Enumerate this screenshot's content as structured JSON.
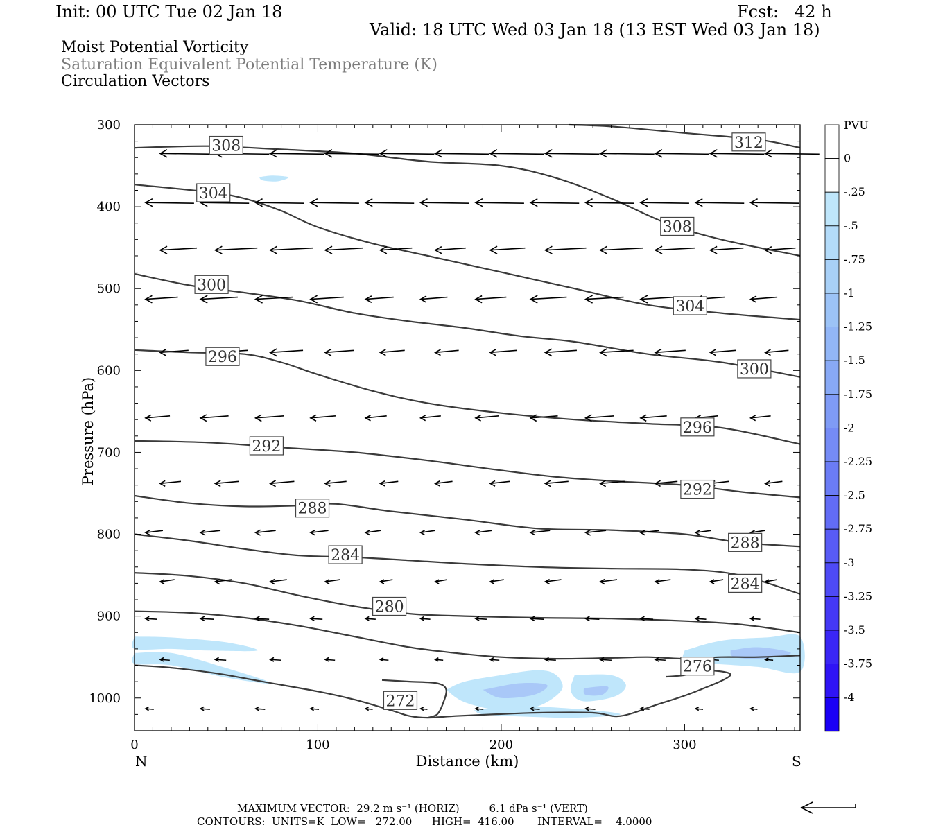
{
  "header": {
    "init": "Init: 00 UTC Tue 02 Jan 18",
    "fcst": "Fcst:   42 h",
    "valid": "Valid: 18 UTC Wed 03 Jan 18 (13 EST Wed 03 Jan 18)"
  },
  "titles": {
    "line1": "Moist Potential Vorticity",
    "line2": "Saturation Equivalent Potential Temperature (K)",
    "line3": "Circulation Vectors"
  },
  "chart_data": {
    "type": "cross-section",
    "xlabel": "Distance (km)",
    "ylabel": "Pressure (hPa)",
    "xlim": [
      0,
      363
    ],
    "ylim": [
      1040,
      300
    ],
    "y_scale": "linear, inverted (pressure decreasing upward)",
    "x_ticks": [
      0,
      100,
      200,
      300
    ],
    "y_ticks": [
      300,
      400,
      500,
      600,
      700,
      800,
      900,
      1000
    ],
    "x_end_labels": {
      "left": "N",
      "right": "S"
    },
    "colorbar": {
      "unit": "PVU",
      "labels": [
        "0",
        "-.25",
        "-.5",
        "-.75",
        "-1",
        "-1.25",
        "-1.5",
        "-1.75",
        "-2",
        "-2.25",
        "-2.5",
        "-2.75",
        "-3",
        "-3.25",
        "-3.5",
        "-3.75",
        "-4"
      ],
      "colors": [
        "#ffffff",
        "#ffffff",
        "#bfe6fb",
        "#b3dbf9",
        "#a8d0f7",
        "#9cc3f7",
        "#92b6f7",
        "#88a9f6",
        "#7f9bf6",
        "#758bf6",
        "#6b7cf6",
        "#626cf6",
        "#585bf6",
        "#4e4af6",
        "#4438f6",
        "#3a26f6",
        "#2f14f6",
        "#1a00f6"
      ]
    },
    "theta_e_contours": [
      {
        "label": "272",
        "points": [
          [
            0,
            960
          ],
          [
            20,
            963
          ],
          [
            45,
            970
          ],
          [
            70,
            980
          ],
          [
            100,
            992
          ],
          [
            120,
            1002
          ],
          [
            140,
            1015
          ],
          [
            150,
            1022
          ],
          [
            160,
            1024
          ],
          [
            175,
            1022
          ],
          [
            195,
            1020
          ],
          [
            220,
            1018
          ],
          [
            250,
            1018
          ],
          [
            265,
            1022
          ],
          [
            285,
            1008
          ],
          [
            305,
            993
          ],
          [
            325,
            972
          ],
          [
            310,
            966
          ],
          [
            300,
            972
          ],
          [
            290,
            974
          ]
        ]
      },
      {
        "label": "272",
        "points": [
          [
            135,
            978
          ],
          [
            150,
            980
          ],
          [
            165,
            982
          ],
          [
            170,
            990
          ],
          [
            168,
            1008
          ],
          [
            165,
            1020
          ],
          [
            160,
            1024
          ]
        ]
      },
      {
        "label": "276",
        "points": [
          [
            0,
            894
          ],
          [
            30,
            896
          ],
          [
            60,
            902
          ],
          [
            90,
            912
          ],
          [
            120,
            925
          ],
          [
            150,
            938
          ],
          [
            175,
            945
          ],
          [
            200,
            950
          ],
          [
            230,
            952
          ],
          [
            260,
            951
          ],
          [
            280,
            950
          ],
          [
            300,
            952
          ],
          [
            320,
            950
          ],
          [
            340,
            950
          ],
          [
            363,
            948
          ]
        ]
      },
      {
        "label": "280",
        "points": [
          [
            0,
            847
          ],
          [
            30,
            851
          ],
          [
            60,
            860
          ],
          [
            90,
            875
          ],
          [
            120,
            888
          ],
          [
            150,
            897
          ],
          [
            180,
            900
          ],
          [
            220,
            902
          ],
          [
            260,
            903
          ],
          [
            300,
            906
          ],
          [
            330,
            910
          ],
          [
            363,
            920
          ]
        ]
      },
      {
        "label": "284",
        "points": [
          [
            0,
            800
          ],
          [
            30,
            808
          ],
          [
            60,
            818
          ],
          [
            90,
            826
          ],
          [
            120,
            828
          ],
          [
            150,
            832
          ],
          [
            180,
            836
          ],
          [
            220,
            840
          ],
          [
            260,
            842
          ],
          [
            300,
            843
          ],
          [
            330,
            850
          ],
          [
            363,
            873
          ]
        ]
      },
      {
        "label": "288",
        "points": [
          [
            0,
            753
          ],
          [
            30,
            762
          ],
          [
            60,
            766
          ],
          [
            90,
            765
          ],
          [
            110,
            763
          ],
          [
            140,
            772
          ],
          [
            180,
            782
          ],
          [
            220,
            793
          ],
          [
            260,
            795
          ],
          [
            300,
            800
          ],
          [
            330,
            810
          ],
          [
            363,
            815
          ]
        ]
      },
      {
        "label": "292",
        "points": [
          [
            0,
            686
          ],
          [
            40,
            688
          ],
          [
            80,
            694
          ],
          [
            120,
            700
          ],
          [
            160,
            710
          ],
          [
            200,
            722
          ],
          [
            230,
            730
          ],
          [
            260,
            735
          ],
          [
            300,
            740
          ],
          [
            330,
            748
          ],
          [
            363,
            755
          ]
        ]
      },
      {
        "label": "296",
        "points": [
          [
            0,
            575
          ],
          [
            30,
            578
          ],
          [
            60,
            580
          ],
          [
            80,
            590
          ],
          [
            100,
            605
          ],
          [
            130,
            625
          ],
          [
            160,
            640
          ],
          [
            200,
            652
          ],
          [
            240,
            660
          ],
          [
            280,
            665
          ],
          [
            320,
            670
          ],
          [
            363,
            690
          ]
        ]
      },
      {
        "label": "300",
        "points": [
          [
            0,
            482
          ],
          [
            30,
            496
          ],
          [
            60,
            505
          ],
          [
            90,
            515
          ],
          [
            120,
            530
          ],
          [
            150,
            540
          ],
          [
            180,
            548
          ],
          [
            210,
            558
          ],
          [
            240,
            565
          ],
          [
            280,
            580
          ],
          [
            320,
            590
          ],
          [
            363,
            608
          ]
        ]
      },
      {
        "label": "304",
        "points": [
          [
            0,
            373
          ],
          [
            40,
            382
          ],
          [
            60,
            390
          ],
          [
            80,
            405
          ],
          [
            100,
            425
          ],
          [
            130,
            445
          ],
          [
            160,
            460
          ],
          [
            200,
            480
          ],
          [
            240,
            500
          ],
          [
            280,
            520
          ],
          [
            320,
            530
          ],
          [
            363,
            538
          ]
        ]
      },
      {
        "label": "308",
        "points": [
          [
            0,
            328
          ],
          [
            40,
            326
          ],
          [
            80,
            330
          ],
          [
            120,
            335
          ],
          [
            160,
            345
          ],
          [
            200,
            350
          ],
          [
            230,
            365
          ],
          [
            260,
            390
          ],
          [
            290,
            420
          ],
          [
            320,
            440
          ],
          [
            363,
            460
          ]
        ]
      },
      {
        "label": "312",
        "points": [
          [
            237,
            300
          ],
          [
            260,
            302
          ],
          [
            300,
            310
          ],
          [
            340,
            318
          ],
          [
            363,
            328
          ]
        ]
      }
    ],
    "contour_label_positions": [
      {
        "label": "308",
        "x": 50,
        "p": 325
      },
      {
        "label": "312",
        "x": 335,
        "p": 321
      },
      {
        "label": "304",
        "x": 43,
        "p": 383
      },
      {
        "label": "308",
        "x": 296,
        "p": 424
      },
      {
        "label": "300",
        "x": 42,
        "p": 495
      },
      {
        "label": "304",
        "x": 303,
        "p": 521
      },
      {
        "label": "296",
        "x": 48,
        "p": 583
      },
      {
        "label": "300",
        "x": 338,
        "p": 598
      },
      {
        "label": "292",
        "x": 72,
        "p": 692
      },
      {
        "label": "296",
        "x": 307,
        "p": 669
      },
      {
        "label": "292",
        "x": 307,
        "p": 745
      },
      {
        "label": "288",
        "x": 97,
        "p": 768
      },
      {
        "label": "288",
        "x": 333,
        "p": 810
      },
      {
        "label": "284",
        "x": 115,
        "p": 825
      },
      {
        "label": "284",
        "x": 333,
        "p": 860
      },
      {
        "label": "280",
        "x": 139,
        "p": 888
      },
      {
        "label": "276",
        "x": 307,
        "p": 961
      },
      {
        "label": "272",
        "x": 145,
        "p": 1003
      }
    ],
    "pv_shading_regions": [
      {
        "value": -0.25,
        "points": [
          [
            0,
            925
          ],
          [
            20,
            926
          ],
          [
            50,
            932
          ],
          [
            67,
            942
          ],
          [
            40,
            942
          ],
          [
            20,
            940
          ],
          [
            0,
            940
          ]
        ]
      },
      {
        "value": -0.25,
        "points": [
          [
            0,
            945
          ],
          [
            20,
            945
          ],
          [
            45,
            960
          ],
          [
            75,
            982
          ],
          [
            50,
            975
          ],
          [
            20,
            960
          ],
          [
            0,
            958
          ]
        ]
      },
      {
        "value": -0.25,
        "points": [
          [
            68,
            364
          ],
          [
            75,
            362
          ],
          [
            84,
            364
          ],
          [
            78,
            369
          ],
          [
            70,
            368
          ]
        ]
      },
      {
        "value": -0.25,
        "points": [
          [
            170,
            990
          ],
          [
            180,
            980
          ],
          [
            200,
            972
          ],
          [
            220,
            966
          ],
          [
            230,
            972
          ],
          [
            233,
            990
          ],
          [
            220,
            1010
          ],
          [
            200,
            1015
          ],
          [
            180,
            1005
          ]
        ]
      },
      {
        "value": -0.25,
        "points": [
          [
            240,
            972
          ],
          [
            260,
            972
          ],
          [
            268,
            984
          ],
          [
            262,
            998
          ],
          [
            245,
            1004
          ],
          [
            238,
            992
          ]
        ]
      },
      {
        "value": -0.25,
        "points": [
          [
            185,
            1015
          ],
          [
            210,
            1010
          ],
          [
            245,
            1014
          ],
          [
            265,
            1020
          ],
          [
            240,
            1024
          ],
          [
            205,
            1022
          ],
          [
            190,
            1020
          ]
        ]
      },
      {
        "value": -0.25,
        "points": [
          [
            300,
            942
          ],
          [
            320,
            930
          ],
          [
            345,
            926
          ],
          [
            363,
            925
          ],
          [
            363,
            968
          ],
          [
            340,
            962
          ],
          [
            315,
            958
          ],
          [
            300,
            955
          ]
        ]
      },
      {
        "value": -0.5,
        "points": [
          [
            190,
            990
          ],
          [
            210,
            982
          ],
          [
            225,
            984
          ],
          [
            218,
            996
          ],
          [
            200,
            1000
          ]
        ]
      },
      {
        "value": -0.5,
        "points": [
          [
            245,
            988
          ],
          [
            258,
            986
          ],
          [
            255,
            996
          ],
          [
            246,
            996
          ]
        ]
      },
      {
        "value": -0.5,
        "points": [
          [
            325,
            942
          ],
          [
            340,
            938
          ],
          [
            358,
            945
          ],
          [
            342,
            952
          ],
          [
            327,
            950
          ]
        ]
      }
    ],
    "circulation_vectors_hpa_levels": [
      335,
      395,
      453,
      513,
      578,
      658,
      738,
      798,
      858,
      903,
      953,
      1013
    ],
    "reference_vector": {
      "horiz_ms": 29.2,
      "vert_dPa_s": 6.1
    }
  },
  "footer": {
    "max_vector": "MAXIMUM VECTOR:  29.2 m s⁻¹ (HORIZ)         6.1 dPa s⁻¹ (VERT)",
    "contours": "CONTOURS:  UNITS=K  LOW=   272.00      HIGH=  416.00       INTERVAL=    4.0000"
  }
}
